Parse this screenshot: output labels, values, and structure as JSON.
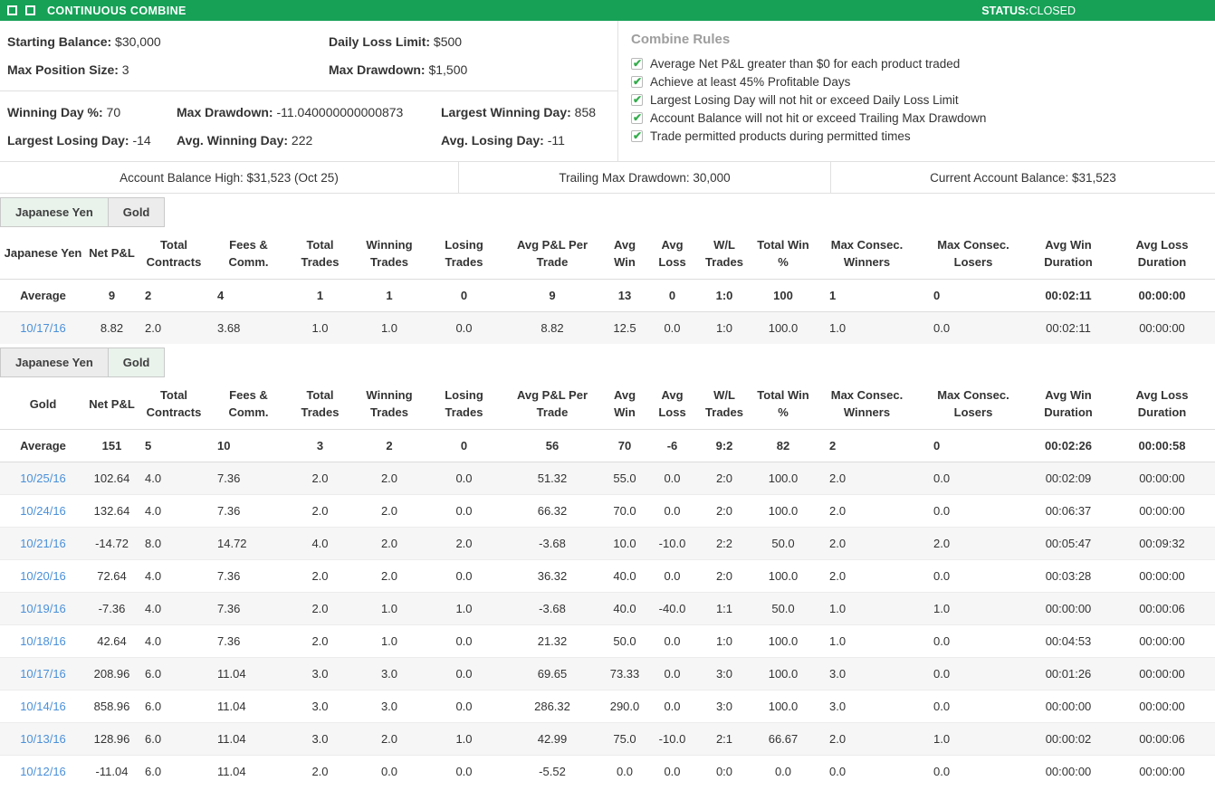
{
  "header": {
    "title": "CONTINUOUS COMBINE",
    "status_label": "STATUS:",
    "status_value": "CLOSED"
  },
  "account_info": {
    "limits": [
      {
        "label": "Starting Balance:",
        "value": "$30,000"
      },
      {
        "label": "Daily Loss Limit:",
        "value": "$500"
      },
      {
        "label": "Max Position Size:",
        "value": "3"
      },
      {
        "label": "Max Drawdown:",
        "value": "$1,500"
      }
    ],
    "performance": [
      {
        "label": "Winning Day %:",
        "value": "70"
      },
      {
        "label": "Max Drawdown:",
        "value": "-11.040000000000873"
      },
      {
        "label": "Largest Winning Day:",
        "value": "858"
      },
      {
        "label": "Largest Losing Day:",
        "value": "-14"
      },
      {
        "label": "Avg. Winning Day:",
        "value": "222"
      },
      {
        "label": "Avg. Losing Day:",
        "value": "-11"
      }
    ]
  },
  "combine_rules": {
    "title": "Combine Rules",
    "rules": [
      "Average Net P&L greater than $0 for each product traded",
      "Achieve at least 45% Profitable Days",
      "Largest Losing Day will not hit or exceed Daily Loss Limit",
      "Account Balance will not hit or exceed Trailing Max Drawdown",
      "Trade permitted products during permitted times"
    ]
  },
  "balance_bar": {
    "items": [
      {
        "text": "Account Balance High: $31,523 (Oct 25)"
      },
      {
        "text": "Trailing Max Drawdown: 30,000"
      },
      {
        "text": "Current Account Balance: $31,523"
      }
    ]
  },
  "table_columns": [
    "Net P&L",
    "Total Contracts",
    "Fees & Comm.",
    "Total Trades",
    "Winning Trades",
    "Losing Trades",
    "Avg P&L Per Trade",
    "Avg Win",
    "Avg Loss",
    "W/L Trades",
    "Total Win %",
    "Max Consec. Winners",
    "Max Consec. Losers",
    "Avg Win Duration",
    "Avg Loss Duration"
  ],
  "average_label": "Average",
  "sections": [
    {
      "id": "japanese-yen",
      "tabs": [
        {
          "label": "Japanese Yen",
          "selected": true
        },
        {
          "label": "Gold",
          "selected": false
        }
      ],
      "first_col": "Japanese Yen",
      "average": [
        "9",
        "2",
        "4",
        "1",
        "1",
        "0",
        "9",
        "13",
        "0",
        "1:0",
        "100",
        "1",
        "0",
        "00:02:11",
        "00:00:00"
      ],
      "rows": [
        {
          "date": "10/17/16",
          "values": [
            "8.82",
            "2.0",
            "3.68",
            "1.0",
            "1.0",
            "0.0",
            "8.82",
            "12.5",
            "0.0",
            "1:0",
            "100.0",
            "1.0",
            "0.0",
            "00:02:11",
            "00:00:00"
          ]
        }
      ]
    },
    {
      "id": "gold",
      "tabs": [
        {
          "label": "Japanese Yen",
          "selected": false
        },
        {
          "label": "Gold",
          "selected": true
        }
      ],
      "first_col": "Gold",
      "average": [
        "151",
        "5",
        "10",
        "3",
        "2",
        "0",
        "56",
        "70",
        "-6",
        "9:2",
        "82",
        "2",
        "0",
        "00:02:26",
        "00:00:58"
      ],
      "rows": [
        {
          "date": "10/25/16",
          "values": [
            "102.64",
            "4.0",
            "7.36",
            "2.0",
            "2.0",
            "0.0",
            "51.32",
            "55.0",
            "0.0",
            "2:0",
            "100.0",
            "2.0",
            "0.0",
            "00:02:09",
            "00:00:00"
          ]
        },
        {
          "date": "10/24/16",
          "values": [
            "132.64",
            "4.0",
            "7.36",
            "2.0",
            "2.0",
            "0.0",
            "66.32",
            "70.0",
            "0.0",
            "2:0",
            "100.0",
            "2.0",
            "0.0",
            "00:06:37",
            "00:00:00"
          ]
        },
        {
          "date": "10/21/16",
          "values": [
            "-14.72",
            "8.0",
            "14.72",
            "4.0",
            "2.0",
            "2.0",
            "-3.68",
            "10.0",
            "-10.0",
            "2:2",
            "50.0",
            "2.0",
            "2.0",
            "00:05:47",
            "00:09:32"
          ]
        },
        {
          "date": "10/20/16",
          "values": [
            "72.64",
            "4.0",
            "7.36",
            "2.0",
            "2.0",
            "0.0",
            "36.32",
            "40.0",
            "0.0",
            "2:0",
            "100.0",
            "2.0",
            "0.0",
            "00:03:28",
            "00:00:00"
          ]
        },
        {
          "date": "10/19/16",
          "values": [
            "-7.36",
            "4.0",
            "7.36",
            "2.0",
            "1.0",
            "1.0",
            "-3.68",
            "40.0",
            "-40.0",
            "1:1",
            "50.0",
            "1.0",
            "1.0",
            "00:00:00",
            "00:00:06"
          ]
        },
        {
          "date": "10/18/16",
          "values": [
            "42.64",
            "4.0",
            "7.36",
            "2.0",
            "1.0",
            "0.0",
            "21.32",
            "50.0",
            "0.0",
            "1:0",
            "100.0",
            "1.0",
            "0.0",
            "00:04:53",
            "00:00:00"
          ]
        },
        {
          "date": "10/17/16",
          "values": [
            "208.96",
            "6.0",
            "11.04",
            "3.0",
            "3.0",
            "0.0",
            "69.65",
            "73.33",
            "0.0",
            "3:0",
            "100.0",
            "3.0",
            "0.0",
            "00:01:26",
            "00:00:00"
          ]
        },
        {
          "date": "10/14/16",
          "values": [
            "858.96",
            "6.0",
            "11.04",
            "3.0",
            "3.0",
            "0.0",
            "286.32",
            "290.0",
            "0.0",
            "3:0",
            "100.0",
            "3.0",
            "0.0",
            "00:00:00",
            "00:00:00"
          ]
        },
        {
          "date": "10/13/16",
          "values": [
            "128.96",
            "6.0",
            "11.04",
            "3.0",
            "2.0",
            "1.0",
            "42.99",
            "75.0",
            "-10.0",
            "2:1",
            "66.67",
            "2.0",
            "1.0",
            "00:00:02",
            "00:00:06"
          ]
        },
        {
          "date": "10/12/16",
          "values": [
            "-11.04",
            "6.0",
            "11.04",
            "2.0",
            "0.0",
            "0.0",
            "-5.52",
            "0.0",
            "0.0",
            "0:0",
            "0.0",
            "0.0",
            "0.0",
            "00:00:00",
            "00:00:00"
          ]
        }
      ]
    }
  ],
  "colors": {
    "header_green": "#16a157",
    "check_green": "#35ad4d",
    "link_blue": "#4a90d9",
    "selected_tab_bg": "#e9f3ec",
    "stripe_gray": "#f6f6f6"
  }
}
